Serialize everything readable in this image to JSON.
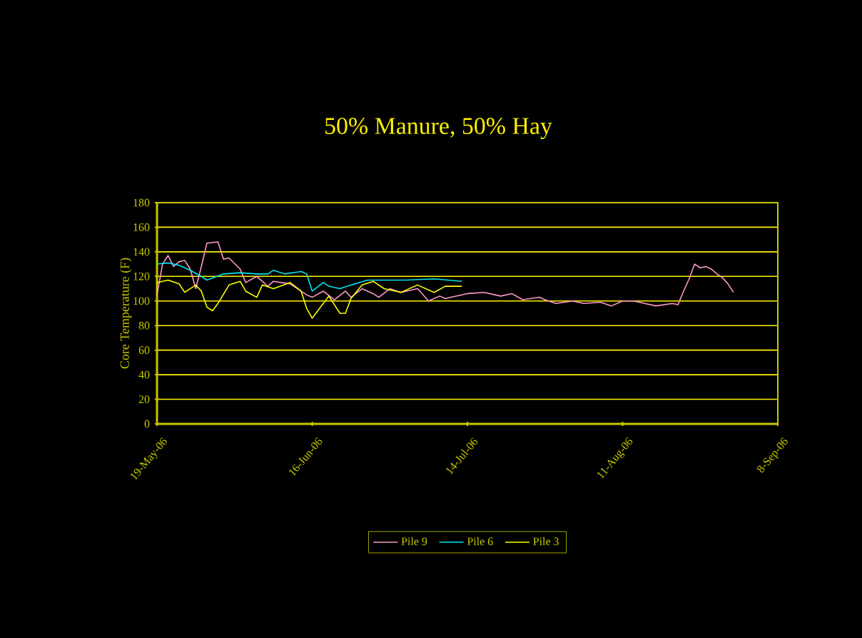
{
  "chart_data": {
    "type": "line",
    "title": "50% Manure, 50% Hay",
    "ylabel": "Core Temperature (F)",
    "xlim": [
      "2006-05-19",
      "2006-09-08"
    ],
    "xticks": [
      {
        "value": "2006-05-19",
        "label": "19-May-06"
      },
      {
        "value": "2006-06-16",
        "label": "16-Jun-06"
      },
      {
        "value": "2006-07-14",
        "label": "14-Jul-06"
      },
      {
        "value": "2006-08-11",
        "label": "11-Aug-06"
      },
      {
        "value": "2006-09-08",
        "label": "8-Sep-06"
      }
    ],
    "ylim": [
      0,
      180
    ],
    "yticks": [
      0,
      20,
      40,
      60,
      80,
      100,
      120,
      140,
      160,
      180
    ],
    "grid": "y",
    "legend": "bottom",
    "marker": "none",
    "line_style": "solid",
    "series": [
      {
        "name": "Pile 9",
        "color": "#ff99cc",
        "x": [
          "2006-05-19",
          "2006-05-20",
          "2006-05-21",
          "2006-05-22",
          "2006-05-23",
          "2006-05-24",
          "2006-05-25",
          "2006-05-26",
          "2006-05-27",
          "2006-05-28",
          "2006-05-30",
          "2006-05-31",
          "2006-06-01",
          "2006-06-03",
          "2006-06-04",
          "2006-06-06",
          "2006-06-08",
          "2006-06-09",
          "2006-06-12",
          "2006-06-15",
          "2006-06-16",
          "2006-06-18",
          "2006-06-20",
          "2006-06-22",
          "2006-06-23",
          "2006-06-25",
          "2006-06-27",
          "2006-06-28",
          "2006-06-30",
          "2006-07-02",
          "2006-07-05",
          "2006-07-07",
          "2006-07-09",
          "2006-07-10",
          "2006-07-14",
          "2006-07-17",
          "2006-07-20",
          "2006-07-22",
          "2006-07-24",
          "2006-07-27",
          "2006-07-28",
          "2006-07-30",
          "2006-08-02",
          "2006-08-04",
          "2006-08-07",
          "2006-08-09",
          "2006-08-11",
          "2006-08-13",
          "2006-08-15",
          "2006-08-17",
          "2006-08-20",
          "2006-08-21",
          "2006-08-22",
          "2006-08-23",
          "2006-08-24",
          "2006-08-25",
          "2006-08-26",
          "2006-08-27",
          "2006-08-28",
          "2006-08-29",
          "2006-08-30",
          "2006-08-31"
        ],
        "values": [
          105,
          130,
          137,
          128,
          132,
          133,
          126,
          110,
          128,
          147,
          148,
          134,
          135,
          126,
          115,
          120,
          112,
          116,
          114,
          105,
          103,
          108,
          101,
          108,
          103,
          110,
          106,
          103,
          110,
          107,
          110,
          100,
          104,
          102,
          106,
          107,
          104,
          106,
          101,
          103,
          101,
          98,
          100,
          98,
          99,
          96,
          100,
          100,
          98,
          96,
          98,
          97,
          108,
          118,
          130,
          127,
          128,
          126,
          122,
          119,
          114,
          107
        ]
      },
      {
        "name": "Pile 6",
        "color": "#00e5ee",
        "x": [
          "2006-05-19",
          "2006-05-21",
          "2006-05-23",
          "2006-05-25",
          "2006-05-27",
          "2006-05-28",
          "2006-05-31",
          "2006-06-03",
          "2006-06-06",
          "2006-06-08",
          "2006-06-09",
          "2006-06-11",
          "2006-06-14",
          "2006-06-15",
          "2006-06-16",
          "2006-06-18",
          "2006-06-19",
          "2006-06-21",
          "2006-06-23",
          "2006-06-26",
          "2006-07-03",
          "2006-07-08",
          "2006-07-13"
        ],
        "values": [
          130,
          131,
          129,
          125,
          120,
          117,
          122,
          123,
          122,
          122,
          125,
          122,
          124,
          122,
          108,
          115,
          112,
          110,
          113,
          117,
          117,
          118,
          116
        ]
      },
      {
        "name": "Pile 3",
        "color": "#ffff00",
        "x": [
          "2006-05-19",
          "2006-05-21",
          "2006-05-23",
          "2006-05-24",
          "2006-05-25",
          "2006-05-26",
          "2006-05-27",
          "2006-05-28",
          "2006-05-29",
          "2006-05-30",
          "2006-06-01",
          "2006-06-03",
          "2006-06-04",
          "2006-06-06",
          "2006-06-07",
          "2006-06-09",
          "2006-06-12",
          "2006-06-14",
          "2006-06-15",
          "2006-06-16",
          "2006-06-17",
          "2006-06-19",
          "2006-06-21",
          "2006-06-22",
          "2006-06-23",
          "2006-06-25",
          "2006-06-27",
          "2006-06-29",
          "2006-07-02",
          "2006-07-05",
          "2006-07-08",
          "2006-07-10",
          "2006-07-13"
        ],
        "values": [
          115,
          117,
          114,
          107,
          110,
          113,
          108,
          95,
          92,
          98,
          113,
          116,
          108,
          103,
          113,
          110,
          115,
          108,
          94,
          86,
          92,
          104,
          90,
          90,
          102,
          113,
          116,
          110,
          107,
          113,
          107,
          112,
          112
        ]
      }
    ]
  }
}
